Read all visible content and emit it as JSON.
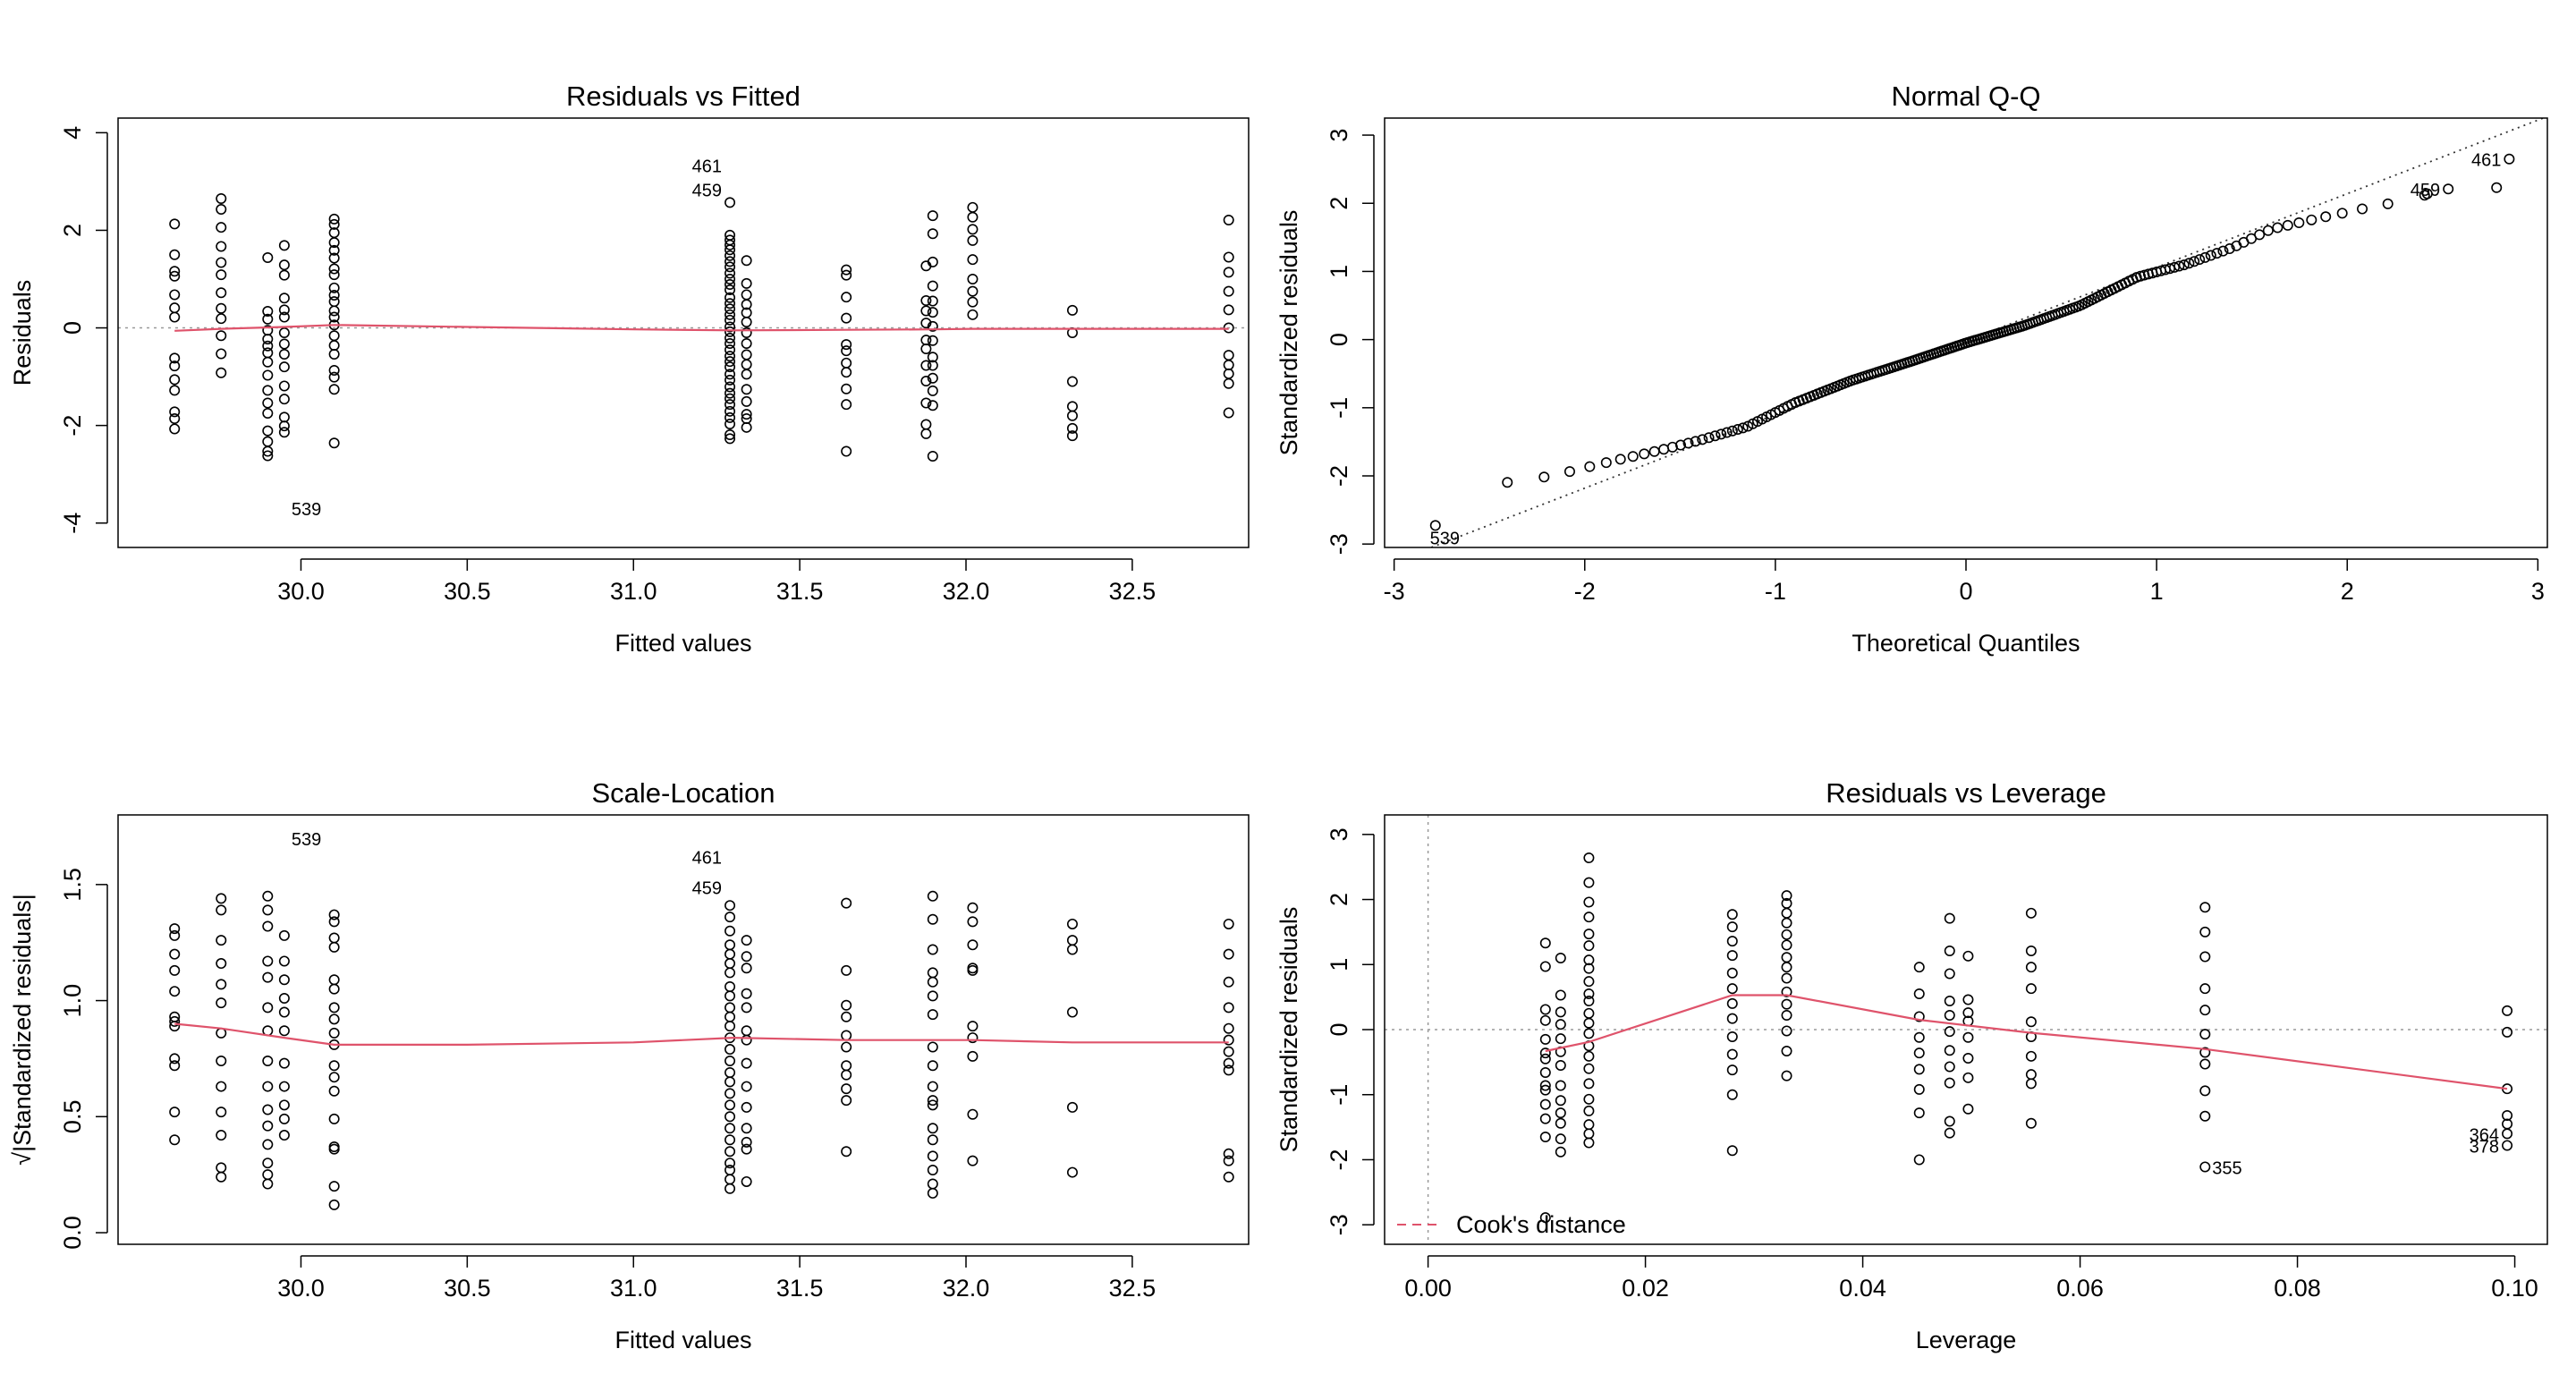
{
  "colors": {
    "smooth": "#DF536B",
    "points": "#000000",
    "reference": "#999999",
    "qq_line": "#333333"
  },
  "chart_data": [
    {
      "type": "scatter",
      "title": "Residuals vs Fitted",
      "xlabel": "Fitted values",
      "ylabel": "Residuals",
      "xlim": [
        29.45,
        32.85
      ],
      "ylim": [
        -4.5,
        4.3
      ],
      "xticks": [
        "30.0",
        "30.5",
        "31.0",
        "31.5",
        "32.0",
        "32.5"
      ],
      "xtick_values": [
        30.0,
        30.5,
        31.0,
        31.5,
        32.0,
        32.5
      ],
      "yticks": [
        "-4",
        "-2",
        "0",
        "2",
        "4"
      ],
      "ytick_values": [
        -4,
        -2,
        0,
        2,
        4
      ],
      "reference_line": 0,
      "groups": [
        {
          "x": 29.62,
          "y": [
            2.13,
            1.5,
            1.16,
            1.06,
            0.68,
            0.41,
            0.22,
            -0.62,
            -0.78,
            -1.06,
            -1.28,
            -1.72,
            -1.86,
            -2.07
          ]
        },
        {
          "x": 29.76,
          "y": [
            2.65,
            2.43,
            2.06,
            1.67,
            1.34,
            1.09,
            0.72,
            0.4,
            0.19,
            -0.16,
            -0.53,
            -0.92
          ]
        },
        {
          "x": 29.9,
          "y": [
            1.44,
            0.34,
            0.18,
            -0.05,
            -0.23,
            -0.37,
            -0.51,
            -0.7,
            -0.97,
            -1.28,
            -1.54,
            -1.75,
            -2.11,
            -2.33,
            -2.53,
            -2.62
          ]
        },
        {
          "x": 29.95,
          "y": [
            1.69,
            1.29,
            1.08,
            0.61,
            0.37,
            0.22,
            -0.1,
            -0.33,
            -0.54,
            -0.8,
            -1.19,
            -1.46,
            -1.83,
            -2.01,
            -2.14
          ]
        },
        {
          "x": 30.1,
          "y": [
            2.23,
            2.12,
            1.95,
            1.75,
            1.59,
            1.43,
            1.21,
            1.09,
            0.82,
            0.67,
            0.54,
            0.35,
            0.22,
            0.06,
            -0.16,
            -0.36,
            -0.54,
            -0.87,
            -1.01,
            -1.26,
            -2.36
          ]
        },
        {
          "x": 31.29,
          "y": [
            2.57,
            1.9,
            1.8,
            1.7,
            1.6,
            1.48,
            1.36,
            1.25,
            1.12,
            1.0,
            0.89,
            0.78,
            0.62,
            0.5,
            0.39,
            0.27,
            0.16,
            0.02,
            -0.08,
            -0.21,
            -0.32,
            -0.45,
            -0.58,
            -0.69,
            -0.8,
            -0.95,
            -1.07,
            -1.21,
            -1.34,
            -1.45,
            -1.57,
            -1.71,
            -1.84,
            -1.97,
            -2.19,
            -2.27
          ]
        },
        {
          "x": 31.34,
          "y": [
            1.38,
            0.91,
            0.68,
            0.48,
            0.31,
            0.12,
            -0.1,
            -0.32,
            -0.55,
            -0.75,
            -0.95,
            -1.26,
            -1.51,
            -1.77,
            -1.86,
            -2.04
          ]
        },
        {
          "x": 31.64,
          "y": [
            1.19,
            1.08,
            0.63,
            0.2,
            -0.34,
            -0.47,
            -0.72,
            -0.91,
            -1.25,
            -1.57,
            -2.53
          ]
        },
        {
          "x": 31.88,
          "y": [
            1.27,
            0.56,
            0.35,
            0.1,
            -0.25,
            -0.43,
            -0.77,
            -1.09,
            -1.54,
            -1.98,
            -2.17
          ]
        },
        {
          "x": 31.9,
          "y": [
            2.3,
            1.93,
            1.35,
            0.86,
            0.55,
            0.32,
            0.03,
            -0.26,
            -0.6,
            -0.77,
            -1.03,
            -1.29,
            -1.59,
            -2.63
          ]
        },
        {
          "x": 32.02,
          "y": [
            2.47,
            2.27,
            2.02,
            1.79,
            1.4,
            1.0,
            0.75,
            0.53,
            0.27
          ]
        },
        {
          "x": 32.32,
          "y": [
            0.36,
            -0.1,
            -1.1,
            -1.61,
            -1.8,
            -2.06,
            -2.21
          ]
        },
        {
          "x": 32.79,
          "y": [
            2.21,
            1.45,
            1.14,
            0.75,
            0.37,
            0.0,
            -0.56,
            -0.76,
            -0.94,
            -1.14,
            -1.74
          ]
        }
      ],
      "smooth_line": {
        "x": [
          29.62,
          29.76,
          29.95,
          30.1,
          30.5,
          31.0,
          31.3,
          31.64,
          31.9,
          32.02,
          32.32,
          32.79
        ],
        "y": [
          -0.06,
          -0.02,
          0.02,
          0.06,
          0.02,
          -0.03,
          -0.05,
          -0.04,
          -0.03,
          -0.02,
          -0.02,
          -0.02
        ]
      },
      "labeled_points": [
        {
          "label": "461",
          "x": 31.29,
          "y": 3.34,
          "side": "left"
        },
        {
          "label": "459",
          "x": 31.29,
          "y": 2.84,
          "side": "left"
        },
        {
          "label": "539",
          "x": 29.95,
          "y": -3.69,
          "side": "right"
        }
      ]
    },
    {
      "type": "scatter",
      "title": "Normal Q-Q",
      "xlabel": "Theoretical Quantiles",
      "ylabel": "Standardized residuals",
      "xlim": [
        -3.05,
        3.05
      ],
      "ylim": [
        -3.05,
        3.25
      ],
      "xticks": [
        "-3",
        "-2",
        "-1",
        "0",
        "1",
        "2",
        "3"
      ],
      "xtick_values": [
        -3,
        -2,
        -1,
        0,
        1,
        2,
        3
      ],
      "yticks": [
        "-3",
        "-2",
        "-1",
        "0",
        "1",
        "2",
        "3"
      ],
      "ytick_values": [
        -3,
        -2,
        -1,
        0,
        1,
        2,
        3
      ],
      "reference_line": {
        "slope": 1.08,
        "intercept": -0.02
      },
      "n_points": 186,
      "quantile_curve": {
        "x": [
          -2.85,
          -2.55,
          -2.32,
          -2.1,
          -1.85,
          -1.6,
          -1.4,
          -1.15,
          -0.9,
          -0.6,
          -0.3,
          0.0,
          0.3,
          0.6,
          0.9,
          1.15,
          1.4,
          1.6,
          1.85,
          2.1,
          2.32,
          2.55
        ],
        "y": [
          -2.9,
          -2.12,
          -2.08,
          -1.95,
          -1.78,
          -1.62,
          -1.48,
          -1.28,
          -0.93,
          -0.6,
          -0.33,
          -0.05,
          0.2,
          0.5,
          0.92,
          1.1,
          1.35,
          1.62,
          1.78,
          1.93,
          2.05,
          2.23
        ]
      },
      "labeled_points": [
        {
          "label": "461",
          "x": 2.85,
          "y": 2.65,
          "side": "left"
        },
        {
          "label": "459",
          "x": 2.53,
          "y": 2.21,
          "side": "left"
        },
        {
          "label": "539",
          "x": -2.85,
          "y": -2.9,
          "side": "right"
        }
      ],
      "extra_points": [
        {
          "x": 2.42,
          "y": 2.14
        },
        {
          "x": 2.53,
          "y": 2.21
        },
        {
          "x": 2.85,
          "y": 2.65
        }
      ]
    },
    {
      "type": "scatter",
      "title": "Scale-Location",
      "xlabel": "Fitted values",
      "ylabel": "√|Standardized residuals|",
      "xlim": [
        29.45,
        32.85
      ],
      "ylim": [
        -0.05,
        1.8
      ],
      "xticks": [
        "30.0",
        "30.5",
        "31.0",
        "31.5",
        "32.0",
        "32.5"
      ],
      "xtick_values": [
        30.0,
        30.5,
        31.0,
        31.5,
        32.0,
        32.5
      ],
      "yticks": [
        "0.0",
        "0.5",
        "1.0",
        "1.5"
      ],
      "ytick_values": [
        0.0,
        0.5,
        1.0,
        1.5
      ],
      "groups": [
        {
          "x": 29.62,
          "y": [
            1.31,
            1.28,
            1.2,
            1.13,
            1.04,
            0.93,
            0.91,
            0.89,
            0.75,
            0.72,
            0.52,
            0.4
          ]
        },
        {
          "x": 29.76,
          "y": [
            1.44,
            1.39,
            1.26,
            1.16,
            1.07,
            0.99,
            0.86,
            0.74,
            0.63,
            0.52,
            0.42,
            0.28,
            0.24
          ]
        },
        {
          "x": 29.9,
          "y": [
            1.45,
            1.39,
            1.32,
            1.17,
            1.1,
            0.97,
            0.87,
            0.74,
            0.63,
            0.53,
            0.46,
            0.38,
            0.3,
            0.25,
            0.21
          ]
        },
        {
          "x": 29.95,
          "y": [
            1.28,
            1.17,
            1.09,
            1.01,
            0.95,
            0.87,
            0.73,
            0.63,
            0.55,
            0.49,
            0.42
          ]
        },
        {
          "x": 30.1,
          "y": [
            1.37,
            1.34,
            1.27,
            1.23,
            1.09,
            1.05,
            0.97,
            0.92,
            0.86,
            0.81,
            0.72,
            0.67,
            0.61,
            0.49,
            0.37,
            0.36,
            0.2,
            0.12
          ]
        },
        {
          "x": 31.29,
          "y": [
            1.41,
            1.36,
            1.3,
            1.24,
            1.2,
            1.16,
            1.12,
            1.06,
            1.02,
            0.97,
            0.93,
            0.89,
            0.84,
            0.79,
            0.74,
            0.69,
            0.65,
            0.6,
            0.55,
            0.5,
            0.45,
            0.4,
            0.35,
            0.3,
            0.27,
            0.23,
            0.19
          ]
        },
        {
          "x": 31.34,
          "y": [
            1.26,
            1.19,
            1.14,
            1.03,
            0.97,
            0.87,
            0.83,
            0.73,
            0.63,
            0.54,
            0.45,
            0.39,
            0.36,
            0.22
          ]
        },
        {
          "x": 31.64,
          "y": [
            1.42,
            1.13,
            0.98,
            0.93,
            0.85,
            0.8,
            0.72,
            0.68,
            0.62,
            0.57,
            0.35
          ]
        },
        {
          "x": 31.9,
          "y": [
            1.45,
            1.35,
            1.22,
            1.12,
            1.08,
            1.02,
            0.94,
            0.8,
            0.72,
            0.63,
            0.57,
            0.55,
            0.45,
            0.4,
            0.33,
            0.27,
            0.21,
            0.17
          ]
        },
        {
          "x": 32.02,
          "y": [
            1.4,
            1.34,
            1.24,
            1.14,
            1.13,
            0.89,
            0.84,
            0.76,
            0.51,
            0.31
          ]
        },
        {
          "x": 32.32,
          "y": [
            1.33,
            1.26,
            1.22,
            0.95,
            0.54,
            0.26
          ]
        },
        {
          "x": 32.79,
          "y": [
            1.33,
            1.2,
            1.08,
            0.97,
            0.88,
            0.83,
            0.78,
            0.73,
            0.7,
            0.34,
            0.31,
            0.24
          ]
        }
      ],
      "smooth_line": {
        "x": [
          29.62,
          29.76,
          29.95,
          30.1,
          30.5,
          31.0,
          31.3,
          31.64,
          31.9,
          32.02,
          32.32,
          32.79
        ],
        "y": [
          0.9,
          0.88,
          0.84,
          0.81,
          0.81,
          0.82,
          0.84,
          0.83,
          0.83,
          0.83,
          0.82,
          0.82
        ]
      },
      "labeled_points": [
        {
          "label": "539",
          "x": 29.95,
          "y": 1.7,
          "side": "right"
        },
        {
          "label": "461",
          "x": 31.29,
          "y": 1.62,
          "side": "left"
        },
        {
          "label": "459",
          "x": 31.29,
          "y": 1.49,
          "side": "left"
        }
      ]
    },
    {
      "type": "scatter",
      "title": "Residuals vs Leverage",
      "xlabel": "Leverage",
      "ylabel": "Standardized residuals",
      "xlim": [
        -0.004,
        0.103
      ],
      "ylim": [
        -3.3,
        3.3
      ],
      "xticks": [
        "0.00",
        "0.02",
        "0.04",
        "0.06",
        "0.08",
        "0.10"
      ],
      "xtick_values": [
        0.0,
        0.02,
        0.04,
        0.06,
        0.08,
        0.1
      ],
      "yticks": [
        "-3",
        "-2",
        "-1",
        "0",
        "1",
        "2",
        "3"
      ],
      "ytick_values": [
        -3,
        -2,
        -1,
        0,
        1,
        2,
        3
      ],
      "reference_line": 0,
      "vertical_reference": 0.0,
      "groups": [
        {
          "x": 0.0108,
          "y": [
            1.33,
            0.97,
            0.31,
            0.14,
            -0.15,
            -0.36,
            -0.45,
            -0.66,
            -0.86,
            -0.93,
            -1.15,
            -1.37,
            -1.65,
            -2.89
          ]
        },
        {
          "x": 0.0122,
          "y": [
            1.1,
            0.53,
            0.27,
            0.08,
            -0.14,
            -0.34,
            -0.55,
            -0.86,
            -1.09,
            -1.28,
            -1.44,
            -1.68,
            -1.88
          ]
        },
        {
          "x": 0.0148,
          "y": [
            2.64,
            2.26,
            1.96,
            1.73,
            1.47,
            1.29,
            1.07,
            0.94,
            0.74,
            0.55,
            0.44,
            0.25,
            0.1,
            -0.06,
            -0.25,
            -0.41,
            -0.6,
            -0.83,
            -1.07,
            -1.25,
            -1.46,
            -1.6,
            -1.74
          ]
        },
        {
          "x": 0.028,
          "y": [
            1.77,
            1.58,
            1.36,
            1.14,
            0.87,
            0.63,
            0.4,
            0.17,
            -0.11,
            -0.38,
            -0.62,
            -1.0,
            -1.86
          ]
        },
        {
          "x": 0.033,
          "y": [
            2.06,
            1.94,
            1.79,
            1.64,
            1.46,
            1.3,
            1.11,
            0.96,
            0.79,
            0.58,
            0.39,
            0.22,
            -0.02,
            -0.33,
            -0.71
          ]
        },
        {
          "x": 0.0452,
          "y": [
            0.96,
            0.55,
            0.2,
            -0.12,
            -0.36,
            -0.61,
            -0.92,
            -1.28,
            -2.0
          ]
        },
        {
          "x": 0.048,
          "y": [
            1.71,
            1.21,
            0.86,
            0.44,
            0.22,
            -0.03,
            -0.32,
            -0.57,
            -0.82,
            -1.41,
            -1.59
          ]
        },
        {
          "x": 0.0497,
          "y": [
            1.13,
            0.46,
            0.26,
            0.13,
            -0.12,
            -0.44,
            -0.74,
            -1.22
          ]
        },
        {
          "x": 0.0555,
          "y": [
            1.79,
            1.21,
            0.96,
            0.63,
            0.12,
            -0.11,
            -0.41,
            -0.69,
            -0.83,
            -1.44
          ]
        },
        {
          "x": 0.0715,
          "y": [
            1.88,
            1.5,
            1.12,
            0.63,
            0.3,
            -0.07,
            -0.35,
            -0.53,
            -0.94,
            -1.33,
            -2.11
          ]
        },
        {
          "x": 0.0993,
          "y": [
            0.29,
            -0.04,
            -0.91,
            -1.32,
            -1.45,
            -1.6,
            -1.78
          ]
        }
      ],
      "smooth_line": {
        "x": [
          0.0108,
          0.0148,
          0.028,
          0.033,
          0.0452,
          0.0555,
          0.0715,
          0.0993
        ],
        "y": [
          -0.33,
          -0.19,
          0.53,
          0.53,
          0.15,
          -0.05,
          -0.3,
          -0.91
        ]
      },
      "labeled_points": [
        {
          "label": "355",
          "x": 0.0715,
          "y": -2.11,
          "side": "right"
        },
        {
          "label": "364",
          "x": 0.0993,
          "y": -1.6,
          "side": "left"
        },
        {
          "label": "378",
          "x": 0.0993,
          "y": -1.78,
          "side": "left"
        }
      ],
      "legend": {
        "label": "Cook's distance",
        "position": "bottom-left"
      }
    }
  ]
}
